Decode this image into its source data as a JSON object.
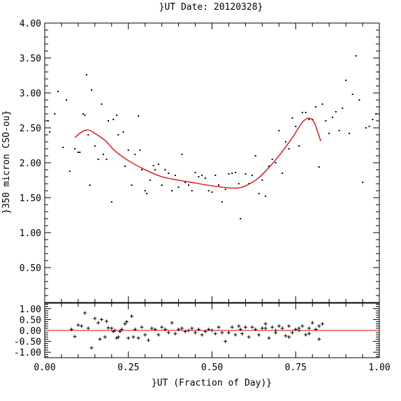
{
  "chart_data": {
    "type": "scatter",
    "title": "}UT Date: 20120328}",
    "xlabel": "}UT (Fraction of Day)}",
    "ylabel": "}350 micron CSO-ou}",
    "xlim": [
      0.0,
      1.0
    ],
    "ylim": [
      0.0,
      4.0
    ],
    "resid_ylim": [
      -1.25,
      1.25
    ],
    "x_ticks": [
      "0.00",
      "0.25",
      "0.50",
      "0.75",
      "1.00"
    ],
    "y_ticks": [
      "0.50",
      "1.00",
      "1.50",
      "2.00",
      "2.50",
      "3.00",
      "3.50",
      "4.00"
    ],
    "resid_y_ticks": [
      "1.00",
      "0.50",
      "0.00",
      "-0.50",
      "-1.00"
    ],
    "fit_color": "#e00000",
    "points": {
      "x": [
        0.01,
        0.015,
        0.03,
        0.04,
        0.055,
        0.065,
        0.075,
        0.09,
        0.1,
        0.105,
        0.115,
        0.12,
        0.125,
        0.13,
        0.135,
        0.14,
        0.15,
        0.16,
        0.17,
        0.175,
        0.185,
        0.19,
        0.2,
        0.205,
        0.215,
        0.22,
        0.235,
        0.24,
        0.25,
        0.26,
        0.27,
        0.28,
        0.285,
        0.29,
        0.3,
        0.305,
        0.315,
        0.325,
        0.33,
        0.34,
        0.35,
        0.36,
        0.37,
        0.38,
        0.39,
        0.4,
        0.41,
        0.42,
        0.43,
        0.44,
        0.45,
        0.46,
        0.47,
        0.48,
        0.49,
        0.5,
        0.51,
        0.52,
        0.53,
        0.54,
        0.55,
        0.56,
        0.57,
        0.58,
        0.585,
        0.6,
        0.61,
        0.62,
        0.63,
        0.64,
        0.65,
        0.66,
        0.67,
        0.68,
        0.69,
        0.7,
        0.71,
        0.72,
        0.73,
        0.74,
        0.75,
        0.76,
        0.77,
        0.78,
        0.79,
        0.8,
        0.81,
        0.82,
        0.83,
        0.84,
        0.85,
        0.86,
        0.87,
        0.88,
        0.89,
        0.9,
        0.91,
        0.92,
        0.93,
        0.94,
        0.95,
        0.96,
        0.97,
        0.98,
        0.99
      ],
      "y": [
        2.6,
        2.44,
        2.7,
        3.02,
        2.22,
        2.9,
        1.88,
        2.2,
        2.15,
        2.15,
        2.7,
        2.68,
        3.26,
        2.4,
        1.68,
        3.04,
        2.24,
        2.05,
        2.84,
        2.12,
        2.05,
        2.6,
        1.44,
        2.62,
        2.68,
        2.4,
        2.44,
        1.95,
        2.18,
        1.68,
        2.12,
        2.67,
        2.18,
        1.9,
        1.6,
        1.56,
        1.75,
        1.96,
        1.9,
        1.98,
        1.68,
        1.9,
        1.85,
        1.6,
        1.82,
        1.65,
        2.12,
        1.72,
        1.68,
        1.6,
        1.86,
        1.8,
        1.82,
        1.78,
        1.6,
        1.58,
        1.82,
        1.68,
        1.44,
        1.62,
        1.84,
        1.85,
        1.86,
        1.7,
        1.2,
        1.84,
        1.7,
        1.82,
        2.1,
        1.56,
        1.75,
        1.52,
        1.95,
        2.05,
        2.0,
        2.46,
        1.85,
        2.3,
        2.2,
        2.64,
        2.52,
        2.24,
        2.72,
        2.72,
        2.62,
        2.62,
        2.8,
        1.94,
        2.84,
        2.6,
        2.42,
        2.65,
        2.73,
        2.46,
        2.78,
        3.18,
        2.42,
        2.98,
        3.53,
        2.9,
        1.72,
        2.5,
        2.52,
        2.62,
        2.7
      ],
      "residuals": [
        0.05,
        -0.28,
        0.25,
        0.2,
        0.8,
        0.1,
        -0.8,
        0.55,
        0.35,
        -0.4,
        0.5,
        -0.3,
        0.42,
        0.12,
        0.1,
        -0.05,
        0.0,
        -0.35,
        -0.3,
        -0.05,
        0.05,
        0.3,
        0.4,
        -0.35,
        0.65,
        -0.3,
        0.05,
        -0.35,
        0.15,
        -0.2,
        -0.45,
        0.1,
        0.05,
        -0.2,
        0.15,
        0.05,
        -0.1,
        0.35,
        -0.15,
        0.05,
        0.1,
        -0.05,
        0.0,
        0.1,
        -0.1,
        0.05,
        -0.2,
        -0.05,
        0.05,
        0.0,
        -0.15,
        0.15,
        -0.1,
        -0.5,
        -0.1,
        0.15,
        -0.2,
        0.2,
        0.05,
        -0.15,
        0.15,
        -0.3,
        0.15,
        0.05,
        -0.2,
        0.1,
        0.3,
        -0.35,
        0.15,
        -0.1,
        0.2,
        0.1,
        -0.25,
        0.2,
        -0.1,
        0.05,
        0.0,
        0.2,
        -0.2,
        0.1,
        0.35,
        0.05,
        -0.4,
        0.3,
        0.1,
        0.0,
        -0.3,
        0.1,
        -0.15,
        0.2
      ],
      "residual_x": [
        0.08,
        0.09,
        0.1,
        0.11,
        0.12,
        0.13,
        0.14,
        0.15,
        0.16,
        0.165,
        0.17,
        0.18,
        0.185,
        0.19,
        0.2,
        0.205,
        0.21,
        0.215,
        0.22,
        0.225,
        0.23,
        0.24,
        0.245,
        0.25,
        0.26,
        0.265,
        0.27,
        0.28,
        0.29,
        0.3,
        0.31,
        0.32,
        0.33,
        0.34,
        0.35,
        0.36,
        0.37,
        0.38,
        0.39,
        0.4,
        0.41,
        0.42,
        0.43,
        0.44,
        0.45,
        0.46,
        0.47,
        0.48,
        0.49,
        0.5,
        0.51,
        0.52,
        0.53,
        0.54,
        0.55,
        0.56,
        0.57,
        0.58,
        0.585,
        0.59,
        0.6,
        0.61,
        0.62,
        0.63,
        0.64,
        0.65,
        0.66,
        0.67,
        0.68,
        0.69,
        0.7,
        0.71,
        0.72,
        0.73,
        0.74,
        0.75,
        0.76,
        0.77,
        0.78,
        0.79,
        0.8,
        0.81,
        0.82,
        0.83,
        0.66,
        0.69,
        0.73,
        0.76,
        0.79,
        0.82
      ]
    },
    "fit": {
      "x": [
        0.09,
        0.11,
        0.13,
        0.15,
        0.18,
        0.21,
        0.25,
        0.3,
        0.35,
        0.4,
        0.45,
        0.5,
        0.55,
        0.58,
        0.6,
        0.63,
        0.66,
        0.7,
        0.74,
        0.77,
        0.79,
        0.805,
        0.815,
        0.825
      ],
      "y": [
        2.36,
        2.44,
        2.47,
        2.42,
        2.32,
        2.17,
        2.03,
        1.9,
        1.8,
        1.75,
        1.71,
        1.67,
        1.64,
        1.64,
        1.67,
        1.75,
        1.88,
        2.1,
        2.36,
        2.58,
        2.64,
        2.58,
        2.45,
        2.31
      ]
    }
  }
}
